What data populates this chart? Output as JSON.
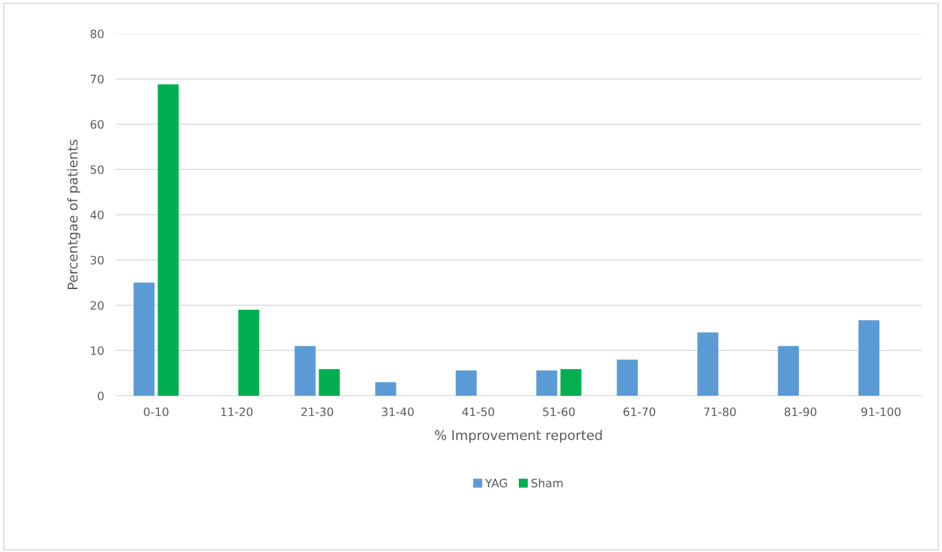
{
  "chart_data": {
    "type": "bar",
    "xlabel": "% Improvement reported",
    "ylabel": "Percentgae of patients",
    "categories": [
      "0-10",
      "11-20",
      "21-30",
      "31-40",
      "41-50",
      "51-60",
      "61-70",
      "71-80",
      "81-90",
      "91-100"
    ],
    "series": [
      {
        "name": "YAG",
        "color": "#5b9bd5",
        "values": [
          25,
          0,
          11,
          3,
          5.6,
          5.6,
          8,
          14,
          11,
          16.7
        ]
      },
      {
        "name": "Sham",
        "color": "#00b050",
        "values": [
          68.8,
          19,
          5.9,
          0,
          0,
          5.9,
          0,
          0,
          0,
          0
        ]
      }
    ],
    "ylim": [
      0,
      80
    ],
    "yticks": [
      0,
      10,
      20,
      30,
      40,
      50,
      60,
      70,
      80
    ],
    "grid": "y",
    "legend": "bottom"
  }
}
